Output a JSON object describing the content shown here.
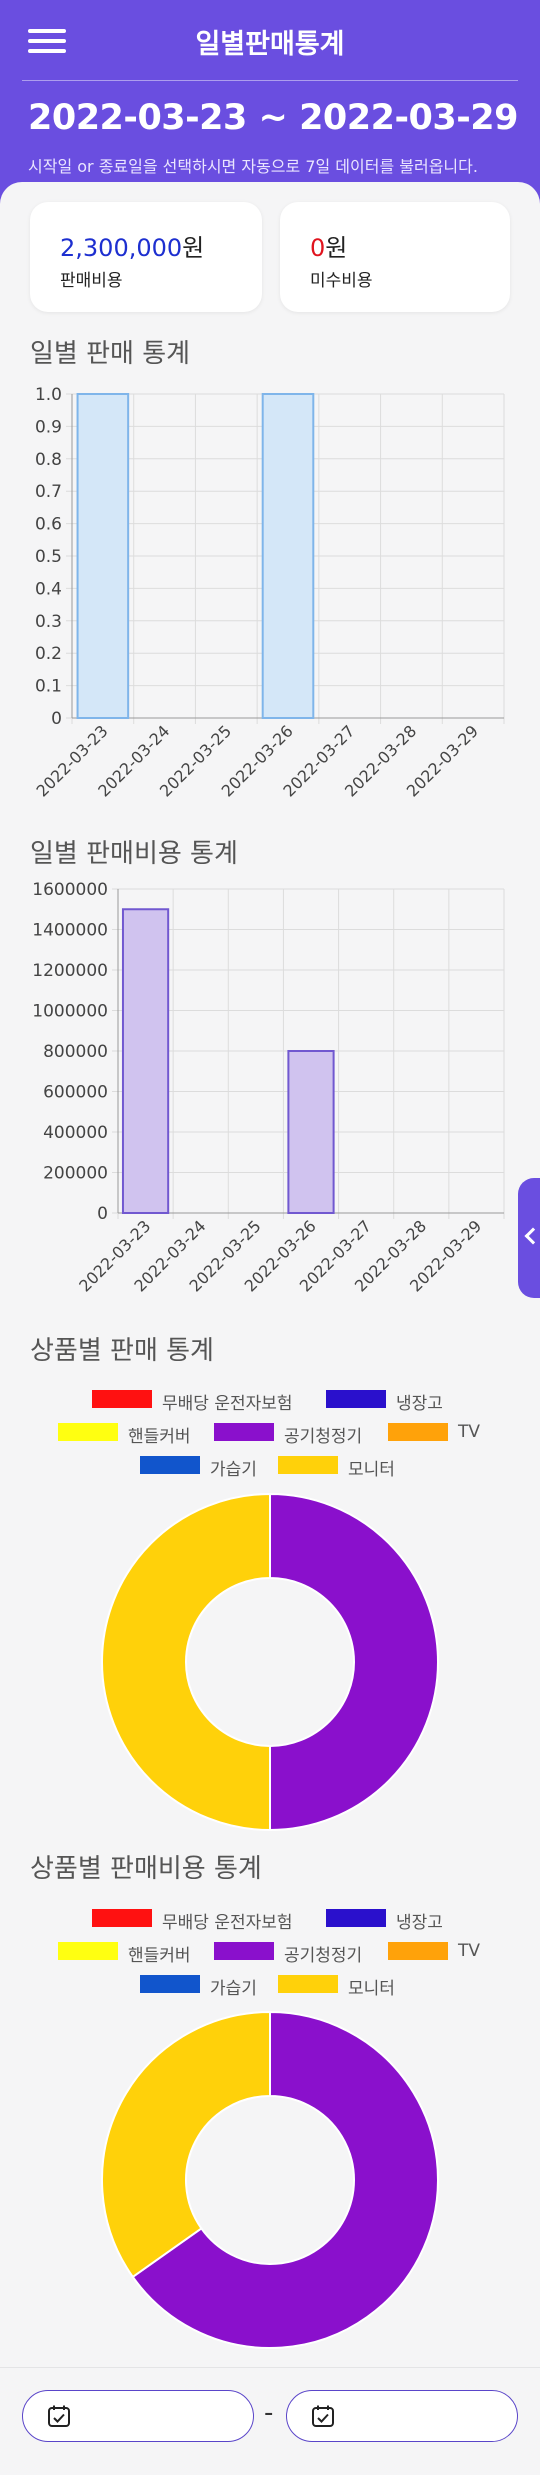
{
  "header": {
    "title": "일별판매통계",
    "date_range": "2022-03-23 ~ 2022-03-29",
    "hint": "시작일 or 종료일을 선택하시면 자동으로 7일 데이터를 불러옵니다."
  },
  "summary": {
    "sales_amount": "2,300,000",
    "sales_unit": "원",
    "sales_label": "판매비용",
    "unpaid_amount": "0",
    "unpaid_unit": "원",
    "unpaid_label": "미수비용"
  },
  "sections": {
    "daily_sales": "일별 판매 통계",
    "daily_cost": "일별 판매비용 통계",
    "product_sales": "상품별 판매 통계",
    "product_cost": "상품별 판매비용 통계"
  },
  "colors": {
    "accent": "#6a4ee0",
    "bar_blue_fill": "#d4e7f8",
    "bar_blue_stroke": "#7fb5ea",
    "bar_purple_fill": "#d0c3ef",
    "bar_purple_stroke": "#7158d0"
  },
  "legend": [
    {
      "label": "무배당 운전자보험",
      "color": "#ff1111"
    },
    {
      "label": "냉장고",
      "color": "#2a10cc"
    },
    {
      "label": "핸들커버",
      "color": "#ffff11"
    },
    {
      "label": "공기청정기",
      "color": "#8a10cc"
    },
    {
      "label": "TV",
      "color": "#ffa20a"
    },
    {
      "label": "가습기",
      "color": "#1155cc"
    },
    {
      "label": "모니터",
      "color": "#ffd10a"
    }
  ],
  "chart_data": [
    {
      "type": "bar",
      "title": "일별 판매 통계",
      "categories": [
        "2022-03-23",
        "2022-03-24",
        "2022-03-25",
        "2022-03-26",
        "2022-03-27",
        "2022-03-28",
        "2022-03-29"
      ],
      "values": [
        1,
        0,
        0,
        1,
        0,
        0,
        0
      ],
      "ylim": [
        0,
        1
      ],
      "yticks": [
        "0",
        "0.1",
        "0.2",
        "0.3",
        "0.4",
        "0.5",
        "0.6",
        "0.7",
        "0.8",
        "0.9",
        "1.0"
      ],
      "grid": true
    },
    {
      "type": "bar",
      "title": "일별 판매비용 통계",
      "categories": [
        "2022-03-23",
        "2022-03-24",
        "2022-03-25",
        "2022-03-26",
        "2022-03-27",
        "2022-03-28",
        "2022-03-29"
      ],
      "values": [
        1500000,
        0,
        0,
        800000,
        0,
        0,
        0
      ],
      "ylim": [
        0,
        1600000
      ],
      "yticks": [
        "0",
        "200000",
        "400000",
        "600000",
        "800000",
        "1000000",
        "1200000",
        "1400000",
        "1600000"
      ],
      "grid": true
    },
    {
      "type": "pie",
      "style": "doughnut",
      "title": "상품별 판매 통계",
      "labels": [
        "무배당 운전자보험",
        "냉장고",
        "핸들커버",
        "공기청정기",
        "TV",
        "가습기",
        "모니터"
      ],
      "values": [
        0,
        0,
        0,
        1,
        0,
        0,
        1
      ],
      "legend_position": "top"
    },
    {
      "type": "pie",
      "style": "doughnut",
      "title": "상품별 판매비용 통계",
      "labels": [
        "무배당 운전자보험",
        "냉장고",
        "핸들커버",
        "공기청정기",
        "TV",
        "가습기",
        "모니터"
      ],
      "values": [
        0,
        0,
        0,
        1500000,
        0,
        0,
        800000
      ],
      "legend_position": "top"
    }
  ]
}
